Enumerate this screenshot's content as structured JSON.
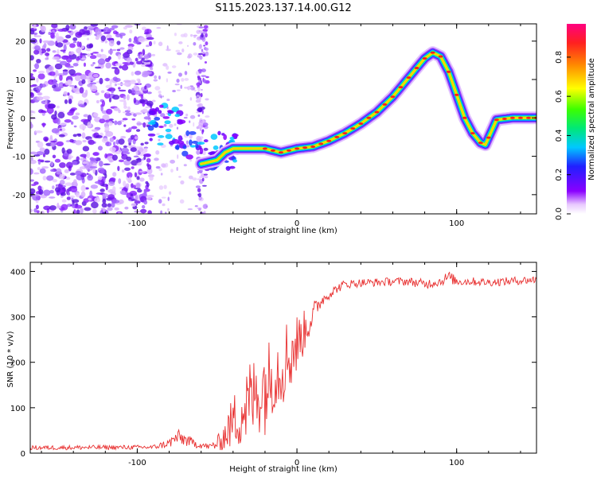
{
  "title": "S115.2023.137.14.00.G12",
  "chart_data": [
    {
      "type": "heatmap",
      "panel": "spectrogram",
      "xlabel": "Height of straight line (km)",
      "ylabel": "Frequency (Hz)",
      "xlim": [
        -167,
        150
      ],
      "ylim": [
        -25,
        24.5
      ],
      "xticks": [
        -100,
        0,
        100
      ],
      "yticks": [
        -20,
        -10,
        0,
        10,
        20
      ],
      "ridge": {
        "x": [
          -60,
          -50,
          -45,
          -40,
          -30,
          -20,
          -10,
          0,
          10,
          20,
          30,
          40,
          50,
          60,
          70,
          80,
          85,
          90,
          95,
          100,
          105,
          110,
          115,
          118,
          125,
          135,
          150
        ],
        "y": [
          -12,
          -11,
          -9,
          -8,
          -8,
          -8,
          -9,
          -8,
          -7.5,
          -6,
          -4,
          -1.5,
          1.5,
          5.5,
          10.5,
          15.5,
          17,
          16,
          12,
          6,
          0,
          -4,
          -6.5,
          -7,
          -0.5,
          0,
          0
        ]
      },
      "colorbar": {
        "label": "Normalized spectral amplitude",
        "min": 0.0,
        "max": 0.97,
        "ticks": [
          0.0,
          0.2,
          0.4,
          0.6,
          0.8
        ],
        "tick_labels": [
          "0.0",
          "0.2",
          "0.4",
          "0.6",
          "0.8"
        ],
        "colors": [
          "#ffffff",
          "#e8c8ff",
          "#8a00ff",
          "#2020ff",
          "#00c8ff",
          "#00e878",
          "#3cff00",
          "#ffff00",
          "#ff8c00",
          "#ff2020",
          "#ff0080"
        ]
      }
    },
    {
      "type": "line",
      "panel": "snr",
      "xlabel": "Height of straight line (km)",
      "ylabel": "SNR (10 * v/v)",
      "xlim": [
        -167,
        150
      ],
      "ylim": [
        0,
        420
      ],
      "xticks": [
        -100,
        0,
        100
      ],
      "yticks": [
        0,
        100,
        200,
        300,
        400
      ],
      "series": [
        {
          "name": "SNR",
          "color": "#e83030",
          "x": [
            -167,
            -90,
            -80,
            -75,
            -70,
            -65,
            -55,
            -50,
            -45,
            -40,
            -35,
            -30,
            -25,
            -20,
            -15,
            -10,
            -5,
            0,
            5,
            10,
            15,
            20,
            25,
            30,
            40,
            50,
            60,
            70,
            80,
            90,
            95,
            100,
            110,
            120,
            130,
            140,
            150
          ],
          "y": [
            12,
            13,
            22,
            35,
            30,
            22,
            14,
            20,
            40,
            70,
            90,
            110,
            130,
            150,
            170,
            195,
            215,
            240,
            270,
            305,
            335,
            350,
            362,
            372,
            375,
            376,
            378,
            378,
            372,
            378,
            388,
            378,
            378,
            376,
            378,
            380,
            382
          ],
          "noise": [
            5,
            5,
            10,
            18,
            15,
            10,
            6,
            15,
            35,
            60,
            80,
            100,
            90,
            110,
            80,
            95,
            90,
            70,
            45,
            30,
            15,
            12,
            10,
            10,
            9,
            9,
            9,
            9,
            11,
            10,
            14,
            10,
            9,
            9,
            9,
            9,
            9
          ]
        }
      ]
    }
  ]
}
